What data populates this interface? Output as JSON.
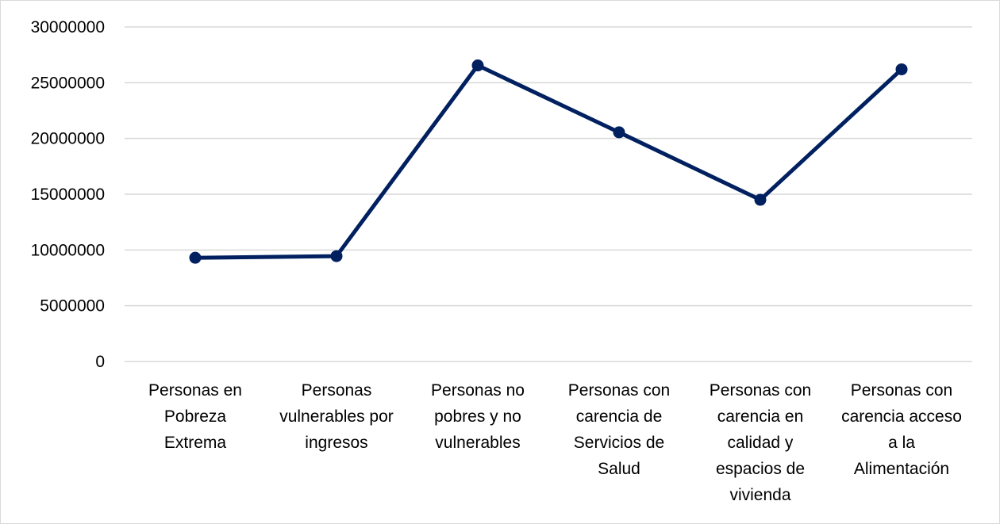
{
  "chart_data": {
    "type": "line",
    "title": "",
    "xlabel": "",
    "ylabel": "",
    "ylim": [
      0,
      30000000
    ],
    "y_ticks": [
      "0",
      "5000000",
      "10000000",
      "15000000",
      "20000000",
      "25000000",
      "30000000"
    ],
    "grid": true,
    "legend": "none",
    "categories": [
      [
        "Personas en",
        "Pobreza",
        "Extrema"
      ],
      [
        "Personas",
        "vulnerables por",
        "ingresos"
      ],
      [
        "Personas no",
        "pobres y no",
        "vulnerables"
      ],
      [
        "Personas con",
        "carencia de",
        "Servicios de",
        "Salud"
      ],
      [
        "Personas con",
        "carencia en",
        "calidad y",
        "espacios de",
        "vivienda"
      ],
      [
        "Personas con",
        "carencia acceso",
        "a la",
        "Alimentación"
      ]
    ],
    "series": [
      {
        "color": "#002060",
        "values": [
          9300000,
          9450000,
          26550000,
          20550000,
          14500000,
          26200000
        ]
      }
    ]
  }
}
